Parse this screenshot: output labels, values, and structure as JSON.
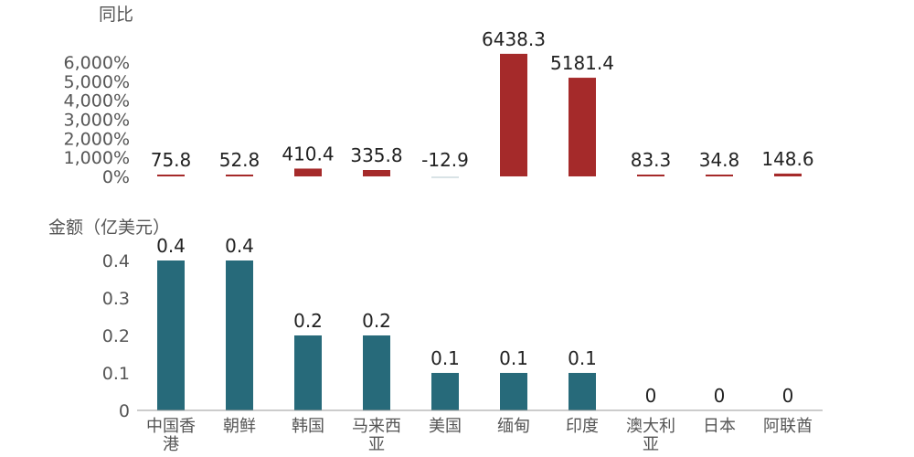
{
  "chart_data": [
    {
      "type": "bar",
      "ylabel": "同比",
      "categories": [
        "中国香港",
        "朝鲜",
        "韩国",
        "马来西亚",
        "美国",
        "缅甸",
        "印度",
        "澳大利亚",
        "日本",
        "阿联酋"
      ],
      "values": [
        75.8,
        52.8,
        410.4,
        335.8,
        -12.9,
        6438.3,
        5181.4,
        83.3,
        34.8,
        148.6
      ],
      "data_labels": [
        "75.8",
        "52.8",
        "410.4",
        "335.8",
        "-12.9",
        "6438.3",
        "5181.4",
        "83.3",
        "34.8",
        "148.6"
      ],
      "ylim": [
        0,
        6000
      ],
      "yticks": [
        "0%",
        "1,000%",
        "2,000%",
        "3,000%",
        "4,000%",
        "5,000%",
        "6,000%"
      ],
      "bar_color": "#a52a2a",
      "grid": false
    },
    {
      "type": "bar",
      "ylabel": "金额（亿美元）",
      "categories": [
        "中国香港",
        "朝鲜",
        "韩国",
        "马来西亚",
        "美国",
        "缅甸",
        "印度",
        "澳大利亚",
        "日本",
        "阿联酋"
      ],
      "category_lines": [
        [
          "中国香",
          "港"
        ],
        [
          "朝鲜"
        ],
        [
          "韩国"
        ],
        [
          "马来西",
          "亚"
        ],
        [
          "美国"
        ],
        [
          "缅甸"
        ],
        [
          "印度"
        ],
        [
          "澳大利",
          "亚"
        ],
        [
          "日本"
        ],
        [
          "阿联酋"
        ]
      ],
      "values": [
        0.4,
        0.4,
        0.2,
        0.2,
        0.1,
        0.1,
        0.1,
        0,
        0,
        0
      ],
      "data_labels": [
        "0.4",
        "0.4",
        "0.2",
        "0.2",
        "0.1",
        "0.1",
        "0.1",
        "0",
        "0",
        "0"
      ],
      "ylim": [
        0,
        0.4
      ],
      "yticks": [
        "0",
        "0.1",
        "0.2",
        "0.3",
        "0.4"
      ],
      "bar_color": "#276a7a",
      "grid": false
    }
  ]
}
